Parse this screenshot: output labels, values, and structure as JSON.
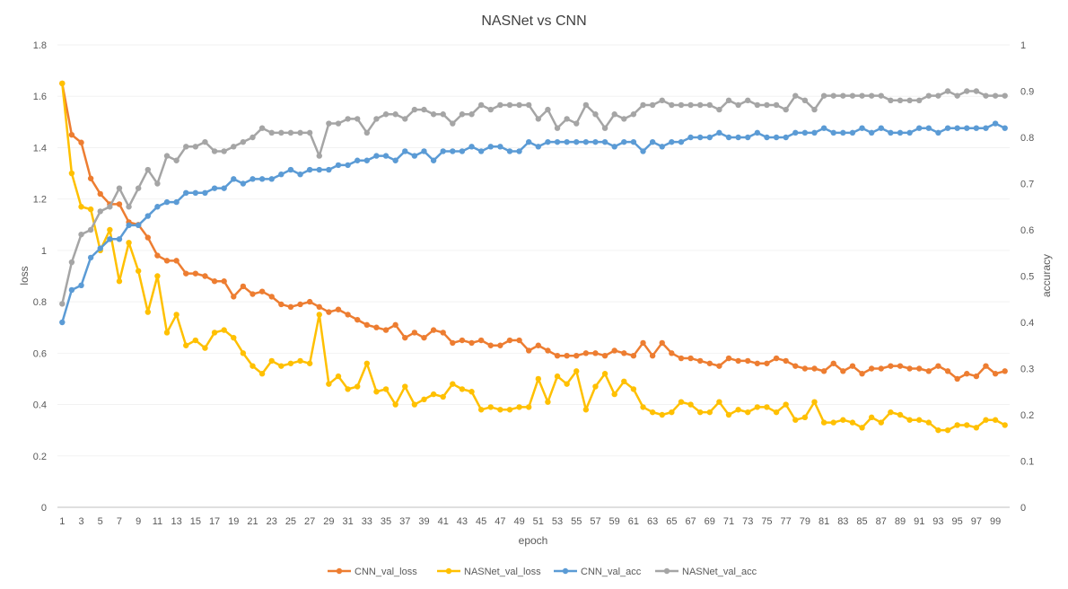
{
  "chart_data": {
    "type": "line",
    "title": "NASNet vs CNN",
    "xlabel": "epoch",
    "ylabel_left": "loss",
    "ylabel_right": "accuracy",
    "ylim_left": [
      0,
      1.8
    ],
    "ylim_right": [
      0,
      1
    ],
    "yticks_left": [
      "0",
      "0.2",
      "0.4",
      "0.6",
      "0.8",
      "1",
      "1.2",
      "1.4",
      "1.6",
      "1.8"
    ],
    "yticks_right": [
      "0",
      "0.1",
      "0.2",
      "0.3",
      "0.4",
      "0.5",
      "0.6",
      "0.7",
      "0.8",
      "0.9",
      "1"
    ],
    "x": [
      1,
      2,
      3,
      4,
      5,
      6,
      7,
      8,
      9,
      10,
      11,
      12,
      13,
      14,
      15,
      16,
      17,
      18,
      19,
      20,
      21,
      22,
      23,
      24,
      25,
      26,
      27,
      28,
      29,
      30,
      31,
      32,
      33,
      34,
      35,
      36,
      37,
      38,
      39,
      40,
      41,
      42,
      43,
      44,
      45,
      46,
      47,
      48,
      49,
      50,
      51,
      52,
      53,
      54,
      55,
      56,
      57,
      58,
      59,
      60,
      61,
      62,
      63,
      64,
      65,
      66,
      67,
      68,
      69,
      70,
      71,
      72,
      73,
      74,
      75,
      76,
      77,
      78,
      79,
      80,
      81,
      82,
      83,
      84,
      85,
      86,
      87,
      88,
      89,
      90,
      91,
      92,
      93,
      94,
      95,
      96,
      97,
      98,
      99,
      100
    ],
    "xticks_labeled": [
      1,
      3,
      5,
      7,
      9,
      11,
      13,
      15,
      17,
      19,
      21,
      23,
      25,
      27,
      29,
      31,
      33,
      35,
      37,
      39,
      41,
      43,
      45,
      47,
      49,
      51,
      53,
      55,
      57,
      59,
      61,
      63,
      65,
      67,
      69,
      71,
      73,
      75,
      77,
      79,
      81,
      83,
      85,
      87,
      89,
      91,
      93,
      95,
      97,
      99
    ],
    "legend_position": "bottom",
    "series": [
      {
        "name": "CNN_val_loss",
        "axis": "left",
        "color": "#ED7D31",
        "values": [
          1.65,
          1.45,
          1.42,
          1.28,
          1.22,
          1.18,
          1.18,
          1.11,
          1.1,
          1.05,
          0.98,
          0.96,
          0.96,
          0.91,
          0.91,
          0.9,
          0.88,
          0.88,
          0.82,
          0.86,
          0.83,
          0.84,
          0.82,
          0.79,
          0.78,
          0.79,
          0.8,
          0.78,
          0.76,
          0.77,
          0.75,
          0.73,
          0.71,
          0.7,
          0.69,
          0.71,
          0.66,
          0.68,
          0.66,
          0.69,
          0.68,
          0.64,
          0.65,
          0.64,
          0.65,
          0.63,
          0.63,
          0.65,
          0.65,
          0.61,
          0.63,
          0.61,
          0.59,
          0.59,
          0.59,
          0.6,
          0.6,
          0.59,
          0.61,
          0.6,
          0.59,
          0.64,
          0.59,
          0.64,
          0.6,
          0.58,
          0.58,
          0.57,
          0.56,
          0.55,
          0.58,
          0.57,
          0.57,
          0.56,
          0.56,
          0.58,
          0.57,
          0.55,
          0.54,
          0.54,
          0.53,
          0.56,
          0.53,
          0.55,
          0.52,
          0.54,
          0.54,
          0.55,
          0.55,
          0.54,
          0.54,
          0.53,
          0.55,
          0.53,
          0.5,
          0.52,
          0.51,
          0.55,
          0.52,
          0.53
        ]
      },
      {
        "name": "NASNet_val_loss",
        "axis": "left",
        "color": "#FFC000",
        "values": [
          1.65,
          1.3,
          1.17,
          1.16,
          1.0,
          1.08,
          0.88,
          1.03,
          0.92,
          0.76,
          0.9,
          0.68,
          0.75,
          0.63,
          0.65,
          0.62,
          0.68,
          0.69,
          0.66,
          0.6,
          0.55,
          0.52,
          0.57,
          0.55,
          0.56,
          0.57,
          0.56,
          0.75,
          0.48,
          0.51,
          0.46,
          0.47,
          0.56,
          0.45,
          0.46,
          0.4,
          0.47,
          0.4,
          0.42,
          0.44,
          0.43,
          0.48,
          0.46,
          0.45,
          0.38,
          0.39,
          0.38,
          0.38,
          0.39,
          0.39,
          0.5,
          0.41,
          0.51,
          0.48,
          0.53,
          0.38,
          0.47,
          0.52,
          0.44,
          0.49,
          0.46,
          0.39,
          0.37,
          0.36,
          0.37,
          0.41,
          0.4,
          0.37,
          0.37,
          0.41,
          0.36,
          0.38,
          0.37,
          0.39,
          0.39,
          0.37,
          0.4,
          0.34,
          0.35,
          0.41,
          0.33,
          0.33,
          0.34,
          0.33,
          0.31,
          0.35,
          0.33,
          0.37,
          0.36,
          0.34,
          0.34,
          0.33,
          0.3,
          0.3,
          0.32,
          0.32,
          0.31,
          0.34,
          0.34,
          0.32
        ]
      },
      {
        "name": "CNN_val_acc",
        "axis": "right",
        "color": "#5B9BD5",
        "values": [
          0.4,
          0.47,
          0.48,
          0.54,
          0.56,
          0.58,
          0.58,
          0.61,
          0.61,
          0.63,
          0.65,
          0.66,
          0.66,
          0.68,
          0.68,
          0.68,
          0.69,
          0.69,
          0.71,
          0.7,
          0.71,
          0.71,
          0.71,
          0.72,
          0.73,
          0.72,
          0.73,
          0.73,
          0.73,
          0.74,
          0.74,
          0.75,
          0.75,
          0.76,
          0.76,
          0.75,
          0.77,
          0.76,
          0.77,
          0.75,
          0.77,
          0.77,
          0.77,
          0.78,
          0.77,
          0.78,
          0.78,
          0.77,
          0.77,
          0.79,
          0.78,
          0.79,
          0.79,
          0.79,
          0.79,
          0.79,
          0.79,
          0.79,
          0.78,
          0.79,
          0.79,
          0.77,
          0.79,
          0.78,
          0.79,
          0.79,
          0.8,
          0.8,
          0.8,
          0.81,
          0.8,
          0.8,
          0.8,
          0.81,
          0.8,
          0.8,
          0.8,
          0.81,
          0.81,
          0.81,
          0.82,
          0.81,
          0.81,
          0.81,
          0.82,
          0.81,
          0.82,
          0.81,
          0.81,
          0.81,
          0.82,
          0.82,
          0.81,
          0.82,
          0.82,
          0.82,
          0.82,
          0.82,
          0.83,
          0.82
        ]
      },
      {
        "name": "NASNet_val_acc",
        "axis": "right",
        "color": "#A5A5A5",
        "values": [
          0.44,
          0.53,
          0.59,
          0.6,
          0.64,
          0.65,
          0.69,
          0.65,
          0.69,
          0.73,
          0.7,
          0.76,
          0.75,
          0.78,
          0.78,
          0.79,
          0.77,
          0.77,
          0.78,
          0.79,
          0.8,
          0.82,
          0.81,
          0.81,
          0.81,
          0.81,
          0.81,
          0.76,
          0.83,
          0.83,
          0.84,
          0.84,
          0.81,
          0.84,
          0.85,
          0.85,
          0.84,
          0.86,
          0.86,
          0.85,
          0.85,
          0.83,
          0.85,
          0.85,
          0.87,
          0.86,
          0.87,
          0.87,
          0.87,
          0.87,
          0.84,
          0.86,
          0.82,
          0.84,
          0.83,
          0.87,
          0.85,
          0.82,
          0.85,
          0.84,
          0.85,
          0.87,
          0.87,
          0.88,
          0.87,
          0.87,
          0.87,
          0.87,
          0.87,
          0.86,
          0.88,
          0.87,
          0.88,
          0.87,
          0.87,
          0.87,
          0.86,
          0.89,
          0.88,
          0.86,
          0.89,
          0.89,
          0.89,
          0.89,
          0.89,
          0.89,
          0.89,
          0.88,
          0.88,
          0.88,
          0.88,
          0.89,
          0.89,
          0.9,
          0.89,
          0.9,
          0.9,
          0.89,
          0.89,
          0.89
        ]
      }
    ]
  }
}
